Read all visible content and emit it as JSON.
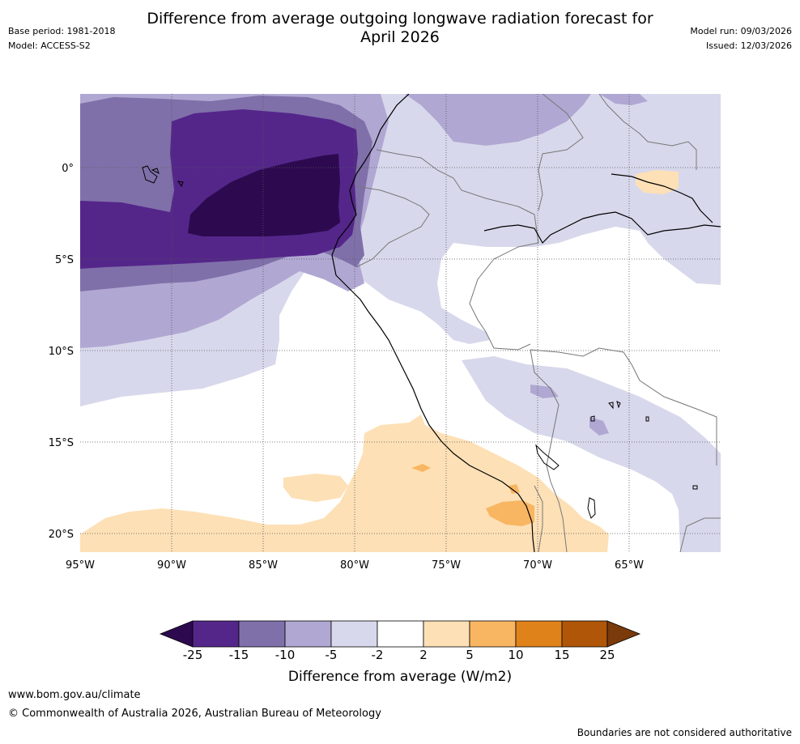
{
  "title": "Difference from average outgoing longwave radiation forecast for April 2026",
  "title_line1": "Difference from average outgoing longwave radiation forecast for",
  "title_line2": "April 2026",
  "meta_left": {
    "base_period": "Base period: 1981-2018",
    "model": "Model: ACCESS-S2"
  },
  "meta_right": {
    "model_run": "Model run: 09/03/2026",
    "issued": "Issued: 12/03/2026"
  },
  "map": {
    "lon_labels": [
      "95°W",
      "90°W",
      "85°W",
      "80°W",
      "75°W",
      "70°W",
      "65°W"
    ],
    "lat_labels": [
      "0°",
      "5°S",
      "10°S",
      "15°S",
      "20°S"
    ],
    "region": "Eastern Pacific / western South America",
    "palette": {
      "lt_-25": "#2d0a50",
      "-25_-15": "#54268a",
      "-15_-10": "#8070aa",
      "-10_-5": "#b0a8d2",
      "-5_-2": "#d8d8ec",
      "-2_2": "#ffffff",
      "2_5": "#fde0b6",
      "5_10": "#f9b662",
      "10_15": "#e0821a",
      "15_25": "#b05608",
      "gt_25": "#7a3a0a"
    }
  },
  "colorbar": {
    "ticks": [
      "-25",
      "-15",
      "-10",
      "-5",
      "-2",
      "2",
      "5",
      "10",
      "15",
      "25"
    ],
    "colors": [
      "#2d0a50",
      "#54268a",
      "#8070aa",
      "#b0a8d2",
      "#d8d8ec",
      "#ffffff",
      "#fde0b6",
      "#f9b662",
      "#e0821a",
      "#b05608",
      "#7a3a0a"
    ],
    "label": "Difference from average (W/m2)"
  },
  "footer": {
    "url": "www.bom.gov.au/climate",
    "copyright": "© Commonwealth of Australia 2026, Australian Bureau of Meteorology",
    "disclaimer": "Boundaries are not considered authoritative"
  }
}
